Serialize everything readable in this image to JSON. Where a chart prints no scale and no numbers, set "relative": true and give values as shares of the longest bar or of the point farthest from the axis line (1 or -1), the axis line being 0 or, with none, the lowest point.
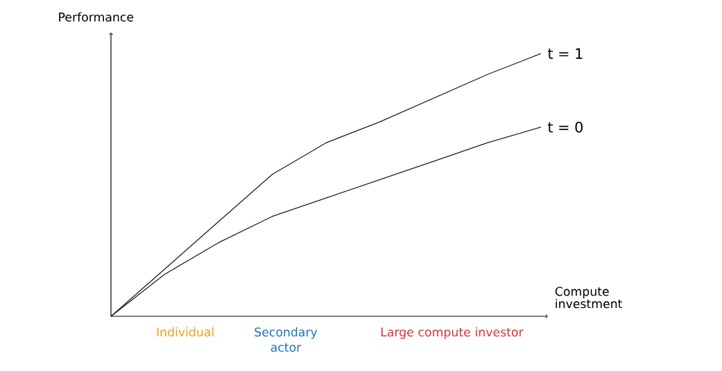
{
  "chart_data": {
    "type": "line",
    "relative": true,
    "xlabel": "Compute investment",
    "ylabel": "Performance",
    "categories": [
      null,
      null,
      null,
      null,
      null,
      null,
      null,
      null,
      null
    ],
    "series": [
      {
        "name": "t = 1",
        "color": "#1e1e1e",
        "values": [
          0,
          0.18,
          0.36,
          0.54,
          0.66,
          0.74,
          0.83,
          0.92,
          1.0
        ]
      },
      {
        "name": "t = 0",
        "color": "#1e1e1e",
        "values": [
          0,
          0.16,
          0.28,
          0.38,
          0.45,
          0.52,
          0.59,
          0.66,
          0.72
        ]
      }
    ],
    "annotations": [
      "Individual",
      "Secondary actor",
      "Large compute investor"
    ],
    "marker": "none",
    "line_style": "solid"
  }
}
